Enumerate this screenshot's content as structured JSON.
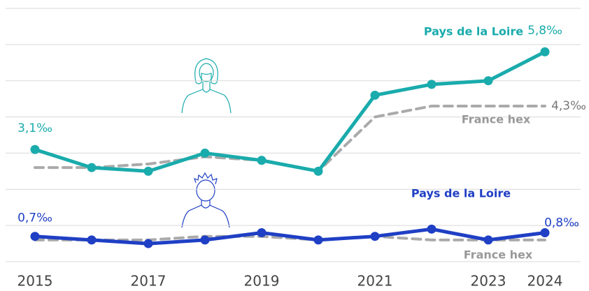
{
  "chart_data": {
    "type": "line",
    "x": [
      2015,
      2016,
      2017,
      2018,
      2019,
      2020,
      2021,
      2022,
      2023,
      2024
    ],
    "xlim": [
      2015,
      2024
    ],
    "xticks": [
      2015,
      2017,
      2019,
      2021,
      2023,
      2024
    ],
    "ylim": [
      0,
      7
    ],
    "yticks": [
      0,
      1,
      2,
      3,
      4,
      5,
      6,
      7
    ],
    "grid": true,
    "series": [
      {
        "name": "Pays de la Loire",
        "color": "#1aabac",
        "dashed": false,
        "markers": true,
        "values": [
          3.1,
          2.6,
          2.5,
          3.0,
          2.8,
          2.5,
          4.6,
          4.9,
          5.0,
          5.8
        ],
        "value_labels": [
          "3,1‰",
          null,
          null,
          null,
          null,
          null,
          null,
          null,
          null,
          "5,8‰"
        ]
      },
      {
        "name": "France hex",
        "color": "#aaaaaa",
        "dashed": true,
        "markers": false,
        "values": [
          2.6,
          2.6,
          2.7,
          2.9,
          2.8,
          2.5,
          4.0,
          4.3,
          4.3,
          4.3
        ],
        "value_labels": [
          null,
          null,
          null,
          null,
          null,
          null,
          null,
          null,
          null,
          "4,3‰"
        ]
      },
      {
        "name": "Pays de la Loire",
        "color": "#1f3fc4",
        "dashed": false,
        "markers": true,
        "values": [
          0.7,
          0.6,
          0.5,
          0.6,
          0.8,
          0.6,
          0.7,
          0.9,
          0.6,
          0.8
        ],
        "value_labels": [
          "0,7‰",
          null,
          null,
          null,
          null,
          null,
          null,
          null,
          null,
          "0,8‰"
        ]
      },
      {
        "name": "France hex",
        "color": "#aaaaaa",
        "dashed": true,
        "markers": false,
        "values": [
          0.6,
          0.6,
          0.6,
          0.7,
          0.7,
          0.6,
          0.7,
          0.6,
          0.6,
          0.6
        ],
        "value_labels": [
          null,
          null,
          null,
          null,
          null,
          null,
          null,
          null,
          null,
          null
        ]
      }
    ]
  }
}
